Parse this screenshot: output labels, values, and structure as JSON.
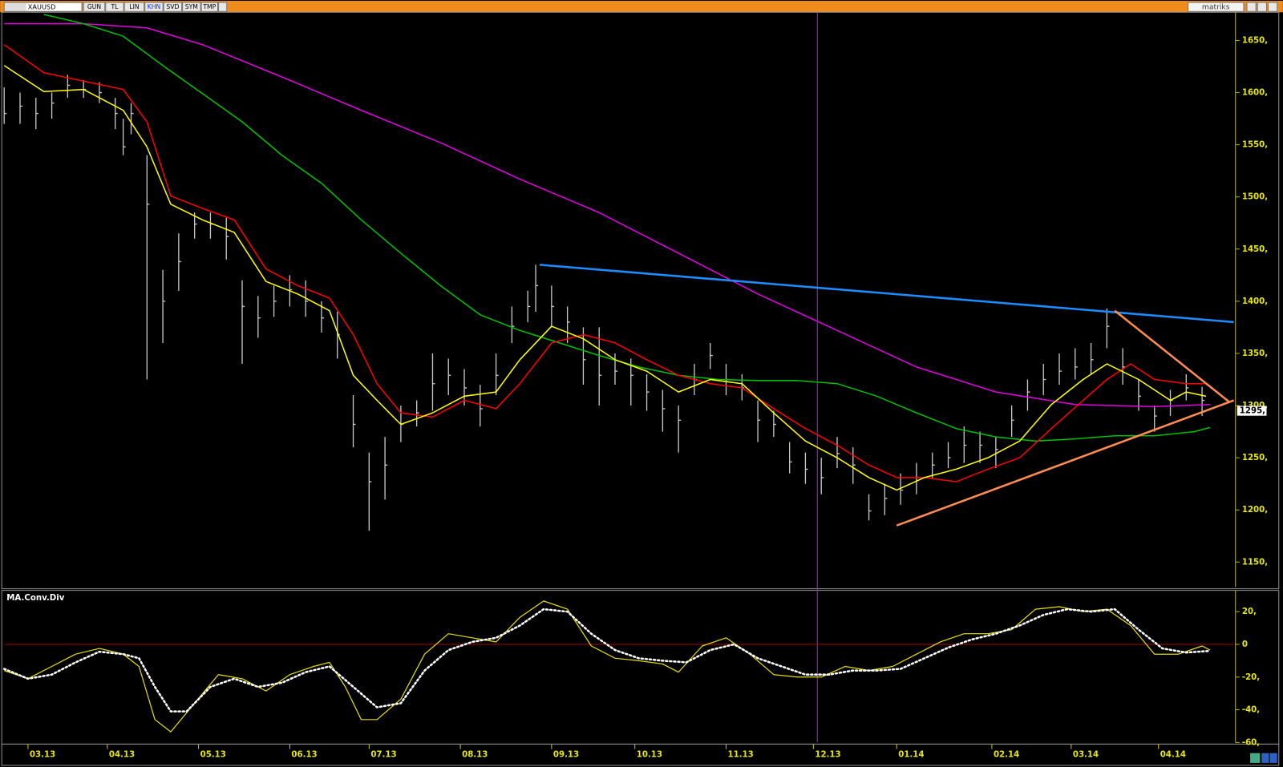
{
  "toolbar": {
    "symbol": "XAUUSD",
    "buttons": [
      "GUN",
      "TL",
      "LIN",
      "KHN",
      "SVD",
      "SYM",
      "TMP"
    ],
    "active_button": "KHN",
    "brand": "matriks"
  },
  "chart_data": [
    {
      "type": "ohlc",
      "xlim": [
        0,
        310
      ],
      "ylim": [
        1126,
        1677
      ],
      "yticks": [
        {
          "value": 1150,
          "label": "1150,"
        },
        {
          "value": 1200,
          "label": "1200,"
        },
        {
          "value": 1250,
          "label": "1250,"
        },
        {
          "value": 1300,
          "label": "1300,"
        },
        {
          "value": 1350,
          "label": "1350,"
        },
        {
          "value": 1400,
          "label": "1400,"
        },
        {
          "value": 1450,
          "label": "1450,"
        },
        {
          "value": 1500,
          "label": "1500,"
        },
        {
          "value": 1550,
          "label": "1550,"
        },
        {
          "value": 1600,
          "label": "1600,"
        },
        {
          "value": 1650,
          "label": "1650,"
        }
      ],
      "last_price": {
        "value": 1295,
        "label": "1295,"
      },
      "cursor_x": 205,
      "cursor_color": "#a020f0",
      "bars": {
        "color": "#c8c8c8",
        "x": [
          0,
          4,
          8,
          12,
          16,
          20,
          24,
          28,
          30,
          32,
          36,
          40,
          44,
          48,
          52,
          56,
          60,
          64,
          68,
          72,
          76,
          80,
          84,
          88,
          92,
          96,
          100,
          104,
          108,
          112,
          116,
          120,
          124,
          128,
          132,
          134,
          138,
          142,
          146,
          150,
          154,
          158,
          162,
          166,
          170,
          174,
          178,
          182,
          186,
          190,
          194,
          198,
          202,
          206,
          210,
          214,
          218,
          222,
          226,
          230,
          234,
          238,
          242,
          246,
          250,
          254,
          258,
          262,
          266,
          270,
          274,
          278,
          282,
          286,
          290,
          294,
          298,
          302
        ],
        "high": [
          1605,
          1600,
          1595,
          1600,
          1617,
          1612,
          1610,
          1595,
          1575,
          1590,
          1540,
          1430,
          1465,
          1485,
          1485,
          1480,
          1420,
          1405,
          1415,
          1425,
          1420,
          1400,
          1390,
          1310,
          1255,
          1270,
          1300,
          1305,
          1350,
          1345,
          1335,
          1320,
          1350,
          1395,
          1410,
          1435,
          1415,
          1395,
          1375,
          1375,
          1350,
          1345,
          1330,
          1315,
          1300,
          1340,
          1360,
          1340,
          1330,
          1305,
          1295,
          1265,
          1255,
          1250,
          1270,
          1260,
          1215,
          1225,
          1235,
          1245,
          1255,
          1265,
          1280,
          1275,
          1270,
          1300,
          1325,
          1340,
          1350,
          1355,
          1360,
          1393,
          1355,
          1325,
          1300,
          1315,
          1330,
          1318
        ],
        "low": [
          1570,
          1570,
          1565,
          1575,
          1595,
          1595,
          1590,
          1565,
          1540,
          1560,
          1325,
          1360,
          1410,
          1460,
          1460,
          1440,
          1340,
          1365,
          1385,
          1395,
          1385,
          1370,
          1345,
          1260,
          1180,
          1210,
          1265,
          1280,
          1295,
          1310,
          1300,
          1280,
          1310,
          1360,
          1380,
          1390,
          1375,
          1360,
          1320,
          1300,
          1320,
          1300,
          1295,
          1275,
          1255,
          1310,
          1335,
          1310,
          1305,
          1265,
          1270,
          1235,
          1225,
          1215,
          1240,
          1225,
          1190,
          1195,
          1205,
          1215,
          1230,
          1240,
          1245,
          1245,
          1240,
          1270,
          1295,
          1310,
          1320,
          1325,
          1330,
          1355,
          1320,
          1295,
          1275,
          1290,
          1305,
          1290
        ],
        "close": [
          1580,
          1587,
          1580,
          1590,
          1607,
          1603,
          1600,
          1580,
          1548,
          1580,
          1493,
          1400,
          1438,
          1474,
          1474,
          1462,
          1395,
          1384,
          1400,
          1411,
          1400,
          1384,
          1368,
          1282,
          1227,
          1243,
          1282,
          1293,
          1321,
          1329,
          1317,
          1297,
          1329,
          1376,
          1395,
          1415,
          1395,
          1380,
          1344,
          1329,
          1333,
          1329,
          1313,
          1297,
          1286,
          1325,
          1348,
          1325,
          1317,
          1286,
          1282,
          1246,
          1239,
          1231,
          1254,
          1243,
          1199,
          1211,
          1219,
          1231,
          1243,
          1250,
          1262,
          1262,
          1258,
          1286,
          1313,
          1325,
          1333,
          1337,
          1344,
          1376,
          1337,
          1309,
          1290,
          1305,
          1317,
          1305
        ]
      },
      "series": [
        {
          "color": "#e000e0",
          "x": [
            0,
            20,
            36,
            50,
            70,
            90,
            110,
            130,
            150,
            170,
            190,
            210,
            230,
            250,
            270,
            290,
            304
          ],
          "values": [
            1666,
            1666,
            1662,
            1646,
            1615,
            1583,
            1552,
            1517,
            1485,
            1446,
            1407,
            1372,
            1337,
            1313,
            1301,
            1299,
            1301
          ]
        },
        {
          "color": "#00c000",
          "x": [
            10,
            20,
            30,
            40,
            50,
            60,
            70,
            80,
            90,
            100,
            110,
            120,
            130,
            140,
            150,
            160,
            170,
            180,
            190,
            200,
            210,
            220,
            230,
            240,
            250,
            260,
            270,
            280,
            290,
            300,
            304
          ],
          "values": [
            1675,
            1666,
            1654,
            1626,
            1599,
            1572,
            1540,
            1513,
            1478,
            1446,
            1415,
            1387,
            1372,
            1360,
            1348,
            1337,
            1329,
            1325,
            1324,
            1324,
            1321,
            1309,
            1293,
            1278,
            1270,
            1266,
            1268,
            1271,
            1271,
            1275,
            1279
          ]
        },
        {
          "color": "#ff0000",
          "x": [
            0,
            10,
            20,
            30,
            36,
            42,
            50,
            58,
            66,
            74,
            82,
            88,
            94,
            100,
            108,
            116,
            124,
            130,
            138,
            146,
            154,
            162,
            170,
            178,
            186,
            194,
            202,
            210,
            218,
            225,
            232,
            240,
            248,
            256,
            264,
            272,
            278,
            284,
            290,
            298,
            303
          ],
          "values": [
            1646,
            1619,
            1611,
            1603,
            1572,
            1501,
            1489,
            1478,
            1431,
            1415,
            1403,
            1368,
            1321,
            1293,
            1289,
            1305,
            1297,
            1321,
            1360,
            1368,
            1360,
            1344,
            1329,
            1321,
            1317,
            1297,
            1278,
            1262,
            1243,
            1231,
            1231,
            1227,
            1239,
            1250,
            1278,
            1305,
            1325,
            1340,
            1325,
            1321,
            1321
          ]
        },
        {
          "color": "#ffff00",
          "x": [
            0,
            10,
            20,
            30,
            36,
            42,
            50,
            58,
            66,
            74,
            82,
            88,
            94,
            100,
            108,
            116,
            124,
            130,
            138,
            146,
            154,
            162,
            170,
            178,
            186,
            194,
            202,
            210,
            218,
            225,
            232,
            240,
            248,
            256,
            264,
            272,
            278,
            286,
            294,
            298,
            303
          ],
          "values": [
            1626,
            1601,
            1603,
            1583,
            1548,
            1493,
            1478,
            1466,
            1419,
            1407,
            1391,
            1329,
            1305,
            1282,
            1293,
            1309,
            1313,
            1344,
            1376,
            1364,
            1344,
            1333,
            1313,
            1325,
            1321,
            1293,
            1266,
            1250,
            1231,
            1219,
            1231,
            1239,
            1250,
            1266,
            1301,
            1325,
            1340,
            1325,
            1305,
            1313,
            1309
          ]
        }
      ],
      "trendlines": [
        {
          "color": "#1e8cff",
          "x": [
            135,
            310
          ],
          "values": [
            1435,
            1380
          ]
        },
        {
          "color": "#ff8c50",
          "x": [
            225,
            310
          ],
          "values": [
            1185,
            1305
          ]
        },
        {
          "color": "#ff8c50",
          "x": [
            280,
            309
          ],
          "values": [
            1391,
            1303
          ]
        }
      ]
    },
    {
      "type": "line",
      "title": "MA.Conv.Div",
      "xlim": [
        0,
        310
      ],
      "ylim": [
        -60,
        33
      ],
      "yticks": [
        {
          "value": 20,
          "label": "20,"
        },
        0,
        {
          "value": -20,
          "label": "-20,"
        },
        {
          "value": -40,
          "label": "-40,"
        },
        {
          "value": -60,
          "label": "-60,"
        }
      ],
      "zero_line": {
        "value": 0,
        "color": "#b00000"
      },
      "xticks": [
        {
          "value": 6,
          "label": "03.13"
        },
        {
          "value": 26,
          "label": "04.13"
        },
        {
          "value": 49,
          "label": "05.13"
        },
        {
          "value": 72,
          "label": "06.13"
        },
        {
          "value": 92,
          "label": "07.13"
        },
        {
          "value": 115,
          "label": "08.13"
        },
        {
          "value": 138,
          "label": "09.13"
        },
        {
          "value": 159,
          "label": "10.13"
        },
        {
          "value": 182,
          "label": "11.13"
        },
        {
          "value": 204,
          "label": "12.13"
        },
        {
          "value": 225,
          "label": "01.14"
        },
        {
          "value": 249,
          "label": "02.14"
        },
        {
          "value": 269,
          "label": "03.14"
        },
        {
          "value": 291,
          "label": "04.14"
        }
      ],
      "series": [
        {
          "color": "#e8e000",
          "dotted": false,
          "x": [
            0,
            6,
            12,
            18,
            24,
            30,
            34,
            38,
            42,
            48,
            54,
            60,
            66,
            72,
            78,
            82,
            86,
            90,
            94,
            100,
            106,
            112,
            118,
            124,
            130,
            136,
            142,
            148,
            154,
            160,
            166,
            170,
            176,
            182,
            188,
            194,
            200,
            206,
            212,
            218,
            224,
            230,
            236,
            242,
            248,
            254,
            260,
            266,
            272,
            278,
            284,
            290,
            296,
            302,
            304
          ],
          "values": [
            -16,
            -21,
            -13.5,
            -6,
            -2.5,
            -6,
            -13.5,
            -46,
            -53.5,
            -36,
            -18.5,
            -21,
            -28.5,
            -18.5,
            -13.5,
            -11,
            -26,
            -46,
            -46,
            -33.5,
            -6,
            6.5,
            4,
            1.5,
            16.5,
            26.5,
            21.5,
            -1,
            -8.5,
            -10,
            -12,
            -17,
            -1,
            4,
            -6,
            -18.5,
            -20,
            -20,
            -13.5,
            -16,
            -13.5,
            -6,
            1.5,
            6.5,
            6.5,
            9,
            21.5,
            23,
            20,
            21.5,
            11.5,
            -6,
            -6,
            -1,
            -3.5
          ]
        },
        {
          "color": "#ffffff",
          "dotted": true,
          "x": [
            0,
            6,
            12,
            18,
            24,
            30,
            34,
            38,
            42,
            46,
            52,
            58,
            64,
            70,
            76,
            82,
            88,
            94,
            100,
            106,
            112,
            118,
            124,
            130,
            136,
            142,
            148,
            154,
            160,
            166,
            172,
            178,
            184,
            190,
            196,
            202,
            208,
            214,
            220,
            226,
            232,
            238,
            244,
            250,
            256,
            262,
            268,
            274,
            280,
            286,
            292,
            298,
            304
          ],
          "values": [
            -15,
            -21,
            -18.5,
            -11,
            -4.5,
            -6,
            -8.5,
            -26,
            -41,
            -41,
            -26,
            -21,
            -26,
            -23.5,
            -17,
            -13.5,
            -26,
            -38.5,
            -36,
            -16,
            -3.5,
            1.5,
            4,
            11.5,
            21.5,
            20,
            6.5,
            -3.5,
            -8.5,
            -10,
            -11,
            -3.5,
            0,
            -8.5,
            -13.5,
            -18.5,
            -18.5,
            -16,
            -16,
            -15,
            -8.5,
            -2,
            3,
            6.5,
            11.5,
            18,
            21.5,
            20,
            21.5,
            9,
            -2.5,
            -5,
            -4
          ]
        }
      ]
    }
  ]
}
